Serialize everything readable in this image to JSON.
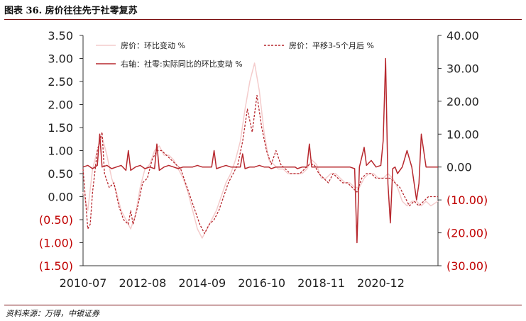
{
  "title": "图表 36. 房价往往先于社零复苏",
  "source": "资料来源：万得，中银证券",
  "chart_data": {
    "type": "line",
    "left_axis": {
      "ylim": [
        -1.5,
        3.5
      ],
      "ticks": [
        3.5,
        3.0,
        2.5,
        2.0,
        1.5,
        1.0,
        0.5,
        0.0,
        -0.5,
        -1.0,
        -1.5
      ],
      "tick_labels": [
        "3.50",
        "3.00",
        "2.50",
        "2.00",
        "1.50",
        "1.00",
        "0.50",
        "0.00",
        "(0.50)",
        "(1.00)",
        "(1.50)"
      ]
    },
    "right_axis": {
      "ylim": [
        -30,
        40
      ],
      "ticks": [
        40,
        30,
        20,
        10,
        0,
        -10,
        -20,
        -30
      ],
      "tick_labels": [
        "40.00",
        "30.00",
        "20.00",
        "10.00",
        "0.00",
        "(10.00)",
        "(20.00)",
        "(30.00)"
      ]
    },
    "x_range": [
      "2010-07",
      "2022-12"
    ],
    "x_tick_labels": [
      "2010-07",
      "2012-08",
      "2014-09",
      "2016-10",
      "2018-11",
      "2020-12"
    ],
    "legend_position": "top",
    "series": [
      {
        "name": "房价：环比变动 %",
        "axis": "left",
        "style": "solid",
        "color": "#f4cccc",
        "points": [
          [
            "2010-07",
            0.1
          ],
          [
            "2010-09",
            -0.3
          ],
          [
            "2010-11",
            0.6
          ],
          [
            "2011-01",
            1.0
          ],
          [
            "2011-03",
            1.3
          ],
          [
            "2011-05",
            0.9
          ],
          [
            "2011-07",
            0.4
          ],
          [
            "2011-09",
            0.1
          ],
          [
            "2011-11",
            -0.3
          ],
          [
            "2012-01",
            -0.5
          ],
          [
            "2012-03",
            -0.7
          ],
          [
            "2012-05",
            -0.4
          ],
          [
            "2012-07",
            0.2
          ],
          [
            "2012-09",
            0.6
          ],
          [
            "2012-11",
            0.7
          ],
          [
            "2013-01",
            1.0
          ],
          [
            "2013-03",
            1.1
          ],
          [
            "2013-05",
            0.9
          ],
          [
            "2013-07",
            0.9
          ],
          [
            "2013-09",
            0.8
          ],
          [
            "2013-11",
            0.6
          ],
          [
            "2014-01",
            0.4
          ],
          [
            "2014-03",
            0.1
          ],
          [
            "2014-05",
            -0.3
          ],
          [
            "2014-07",
            -0.7
          ],
          [
            "2014-09",
            -0.9
          ],
          [
            "2014-11",
            -0.7
          ],
          [
            "2015-01",
            -0.5
          ],
          [
            "2015-03",
            -0.3
          ],
          [
            "2015-05",
            0.0
          ],
          [
            "2015-07",
            0.3
          ],
          [
            "2015-09",
            0.5
          ],
          [
            "2015-11",
            0.8
          ],
          [
            "2016-01",
            1.2
          ],
          [
            "2016-03",
            1.9
          ],
          [
            "2016-05",
            2.5
          ],
          [
            "2016-07",
            2.9
          ],
          [
            "2016-09",
            2.3
          ],
          [
            "2016-11",
            1.4
          ],
          [
            "2017-01",
            0.8
          ],
          [
            "2017-03",
            0.7
          ],
          [
            "2017-05",
            0.6
          ],
          [
            "2017-07",
            0.6
          ],
          [
            "2017-09",
            0.5
          ],
          [
            "2017-11",
            0.5
          ],
          [
            "2018-01",
            0.5
          ],
          [
            "2018-03",
            0.5
          ],
          [
            "2018-05",
            0.6
          ],
          [
            "2018-07",
            0.8
          ],
          [
            "2018-09",
            0.7
          ],
          [
            "2018-11",
            0.4
          ],
          [
            "2019-01",
            0.4
          ],
          [
            "2019-03",
            0.5
          ],
          [
            "2019-05",
            0.5
          ],
          [
            "2019-07",
            0.4
          ],
          [
            "2019-09",
            0.3
          ],
          [
            "2019-11",
            0.3
          ],
          [
            "2020-01",
            0.2
          ],
          [
            "2020-03",
            0.2
          ],
          [
            "2020-05",
            0.4
          ],
          [
            "2020-07",
            0.5
          ],
          [
            "2020-09",
            0.5
          ],
          [
            "2020-11",
            0.4
          ],
          [
            "2021-01",
            0.4
          ],
          [
            "2021-03",
            0.5
          ],
          [
            "2021-05",
            0.4
          ],
          [
            "2021-07",
            0.2
          ],
          [
            "2021-09",
            -0.1
          ],
          [
            "2021-11",
            -0.2
          ],
          [
            "2022-01",
            -0.1
          ],
          [
            "2022-03",
            -0.1
          ],
          [
            "2022-05",
            -0.2
          ],
          [
            "2022-07",
            -0.1
          ],
          [
            "2022-09",
            -0.2
          ],
          [
            "2022-12",
            -0.1
          ]
        ]
      },
      {
        "name": "房价：平移3-5个月后 %",
        "axis": "left",
        "style": "dashed",
        "color": "#b7282e",
        "points": [
          [
            "2010-07",
            0.6
          ],
          [
            "2010-09",
            -0.7
          ],
          [
            "2010-10",
            -0.6
          ],
          [
            "2010-11",
            0.1
          ],
          [
            "2011-01",
            1.0
          ],
          [
            "2011-03",
            1.4
          ],
          [
            "2011-04",
            0.5
          ],
          [
            "2011-06",
            0.2
          ],
          [
            "2011-08",
            0.3
          ],
          [
            "2011-10",
            -0.2
          ],
          [
            "2011-12",
            -0.5
          ],
          [
            "2012-02",
            -0.6
          ],
          [
            "2012-03",
            -0.3
          ],
          [
            "2012-04",
            -0.6
          ],
          [
            "2012-06",
            -0.2
          ],
          [
            "2012-08",
            0.3
          ],
          [
            "2012-10",
            0.4
          ],
          [
            "2012-12",
            0.8
          ],
          [
            "2013-02",
            1.0
          ],
          [
            "2013-04",
            1.0
          ],
          [
            "2013-06",
            0.9
          ],
          [
            "2013-08",
            0.8
          ],
          [
            "2013-10",
            0.7
          ],
          [
            "2013-12",
            0.6
          ],
          [
            "2014-02",
            0.3
          ],
          [
            "2014-04",
            0.0
          ],
          [
            "2014-06",
            -0.3
          ],
          [
            "2014-08",
            -0.6
          ],
          [
            "2014-10",
            -0.8
          ],
          [
            "2014-12",
            -0.6
          ],
          [
            "2015-02",
            -0.5
          ],
          [
            "2015-04",
            -0.3
          ],
          [
            "2015-06",
            0.0
          ],
          [
            "2015-08",
            0.3
          ],
          [
            "2015-10",
            0.5
          ],
          [
            "2015-12",
            0.7
          ],
          [
            "2016-02",
            1.2
          ],
          [
            "2016-04",
            1.9
          ],
          [
            "2016-06",
            1.4
          ],
          [
            "2016-08",
            2.2
          ],
          [
            "2016-10",
            1.5
          ],
          [
            "2016-12",
            1.0
          ],
          [
            "2017-02",
            0.7
          ],
          [
            "2017-04",
            1.0
          ],
          [
            "2017-06",
            0.7
          ],
          [
            "2017-08",
            0.6
          ],
          [
            "2017-10",
            0.5
          ],
          [
            "2017-12",
            0.5
          ],
          [
            "2018-02",
            0.5
          ],
          [
            "2018-04",
            0.6
          ],
          [
            "2018-06",
            0.7
          ],
          [
            "2018-08",
            0.7
          ],
          [
            "2018-10",
            0.5
          ],
          [
            "2018-12",
            0.4
          ],
          [
            "2019-02",
            0.3
          ],
          [
            "2019-04",
            0.5
          ],
          [
            "2019-06",
            0.4
          ],
          [
            "2019-08",
            0.3
          ],
          [
            "2019-10",
            0.3
          ],
          [
            "2019-12",
            0.2
          ],
          [
            "2020-02",
            0.1
          ],
          [
            "2020-04",
            0.4
          ],
          [
            "2020-06",
            0.5
          ],
          [
            "2020-08",
            0.5
          ],
          [
            "2020-10",
            0.4
          ],
          [
            "2020-12",
            0.4
          ],
          [
            "2021-02",
            0.4
          ],
          [
            "2021-04",
            0.4
          ],
          [
            "2021-06",
            0.3
          ],
          [
            "2021-08",
            0.2
          ],
          [
            "2021-10",
            0.0
          ],
          [
            "2021-12",
            -0.2
          ],
          [
            "2022-02",
            -0.1
          ],
          [
            "2022-04",
            -0.2
          ],
          [
            "2022-06",
            -0.1
          ],
          [
            "2022-08",
            0.0
          ],
          [
            "2022-10",
            0.0
          ],
          [
            "2022-12",
            0.0
          ]
        ]
      },
      {
        "name": "右轴：社零:实际同比的环比变动 %",
        "axis": "right",
        "style": "solid",
        "color": "#b7282e",
        "points": [
          [
            "2010-07",
            0.0
          ],
          [
            "2010-09",
            0.5
          ],
          [
            "2010-11",
            -0.5
          ],
          [
            "2011-01",
            0.5
          ],
          [
            "2011-02",
            10.0
          ],
          [
            "2011-03",
            0.0
          ],
          [
            "2011-05",
            0.5
          ],
          [
            "2011-07",
            -0.5
          ],
          [
            "2011-09",
            0.0
          ],
          [
            "2011-11",
            0.5
          ],
          [
            "2012-01",
            -1.0
          ],
          [
            "2012-02",
            5.0
          ],
          [
            "2012-03",
            -1.0
          ],
          [
            "2012-05",
            0.0
          ],
          [
            "2012-07",
            0.5
          ],
          [
            "2012-09",
            -0.5
          ],
          [
            "2012-11",
            0.0
          ],
          [
            "2013-01",
            -0.5
          ],
          [
            "2013-02",
            7.0
          ],
          [
            "2013-03",
            -1.0
          ],
          [
            "2013-05",
            0.0
          ],
          [
            "2013-07",
            0.5
          ],
          [
            "2013-09",
            0.0
          ],
          [
            "2013-11",
            -0.5
          ],
          [
            "2014-01",
            0.0
          ],
          [
            "2014-03",
            0.0
          ],
          [
            "2014-05",
            0.0
          ],
          [
            "2014-07",
            0.5
          ],
          [
            "2014-09",
            0.0
          ],
          [
            "2014-11",
            0.0
          ],
          [
            "2015-01",
            0.0
          ],
          [
            "2015-02",
            5.0
          ],
          [
            "2015-03",
            -0.5
          ],
          [
            "2015-05",
            0.0
          ],
          [
            "2015-07",
            0.5
          ],
          [
            "2015-09",
            0.0
          ],
          [
            "2015-11",
            0.0
          ],
          [
            "2016-01",
            0.0
          ],
          [
            "2016-02",
            4.0
          ],
          [
            "2016-03",
            -0.5
          ],
          [
            "2016-05",
            0.0
          ],
          [
            "2016-07",
            0.0
          ],
          [
            "2016-09",
            0.5
          ],
          [
            "2016-11",
            0.0
          ],
          [
            "2017-01",
            0.0
          ],
          [
            "2017-02",
            -0.5
          ],
          [
            "2017-04",
            0.0
          ],
          [
            "2017-06",
            0.0
          ],
          [
            "2017-08",
            0.0
          ],
          [
            "2017-10",
            0.0
          ],
          [
            "2017-12",
            0.0
          ],
          [
            "2018-01",
            -0.5
          ],
          [
            "2018-03",
            0.0
          ],
          [
            "2018-05",
            0.0
          ],
          [
            "2018-06",
            7.0
          ],
          [
            "2018-07",
            0.0
          ],
          [
            "2018-09",
            0.0
          ],
          [
            "2018-11",
            0.0
          ],
          [
            "2019-01",
            0.0
          ],
          [
            "2019-03",
            0.0
          ],
          [
            "2019-05",
            0.0
          ],
          [
            "2019-07",
            0.0
          ],
          [
            "2019-09",
            0.0
          ],
          [
            "2019-11",
            0.0
          ],
          [
            "2020-01",
            -0.5
          ],
          [
            "2020-02",
            -23.0
          ],
          [
            "2020-03",
            0.0
          ],
          [
            "2020-05",
            6.0
          ],
          [
            "2020-06",
            0.5
          ],
          [
            "2020-08",
            2.0
          ],
          [
            "2020-10",
            0.0
          ],
          [
            "2020-12",
            0.5
          ],
          [
            "2021-01",
            8.0
          ],
          [
            "2021-02",
            33.0
          ],
          [
            "2021-03",
            -5.0
          ],
          [
            "2021-04",
            -17.0
          ],
          [
            "2021-05",
            -0.5
          ],
          [
            "2021-06",
            0.0
          ],
          [
            "2021-07",
            -2.0
          ],
          [
            "2021-09",
            0.0
          ],
          [
            "2021-11",
            5.0
          ],
          [
            "2022-01",
            0.0
          ],
          [
            "2022-03",
            -10.0
          ],
          [
            "2022-04",
            -5.0
          ],
          [
            "2022-05",
            10.0
          ],
          [
            "2022-07",
            0.0
          ],
          [
            "2022-12",
            0.0
          ]
        ]
      }
    ]
  }
}
